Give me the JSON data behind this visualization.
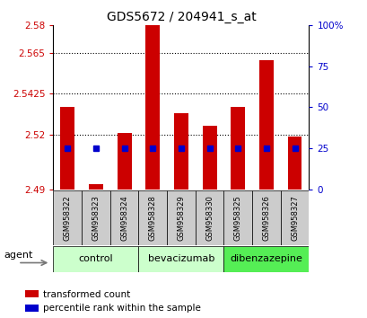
{
  "title": "GDS5672 / 204941_s_at",
  "samples": [
    "GSM958322",
    "GSM958323",
    "GSM958324",
    "GSM958328",
    "GSM958329",
    "GSM958330",
    "GSM958325",
    "GSM958326",
    "GSM958327"
  ],
  "red_values": [
    2.535,
    2.493,
    2.521,
    2.58,
    2.532,
    2.525,
    2.535,
    2.561,
    2.519
  ],
  "blue_values": [
    25,
    25,
    25,
    25,
    25,
    25,
    25,
    25,
    25
  ],
  "ylim_left": [
    2.49,
    2.58
  ],
  "ylim_right": [
    0,
    100
  ],
  "yticks_left": [
    2.49,
    2.52,
    2.5425,
    2.565,
    2.58
  ],
  "yticks_right": [
    0,
    25,
    50,
    75,
    100
  ],
  "ytick_labels_left": [
    "2.49",
    "2.52",
    "2.5425",
    "2.565",
    "2.58"
  ],
  "ytick_labels_right": [
    "0",
    "25",
    "50",
    "75",
    "100%"
  ],
  "groups": [
    {
      "label": "control",
      "start": 0,
      "end": 3,
      "color": "#ccffcc"
    },
    {
      "label": "bevacizumab",
      "start": 3,
      "end": 6,
      "color": "#ccffcc"
    },
    {
      "label": "dibenzazepine",
      "start": 6,
      "end": 9,
      "color": "#55ee55"
    }
  ],
  "agent_label": "agent",
  "bar_color": "#cc0000",
  "dot_color": "#0000cc",
  "bg_color": "#ffffff",
  "tick_color_left": "#cc0000",
  "tick_color_right": "#0000cc",
  "legend_red": "transformed count",
  "legend_blue": "percentile rank within the sample",
  "dotted_lines": [
    2.52,
    2.5425,
    2.565
  ],
  "bar_baseline": 2.49,
  "group_box_color": "#ccffcc",
  "sample_box_color": "#cccccc"
}
